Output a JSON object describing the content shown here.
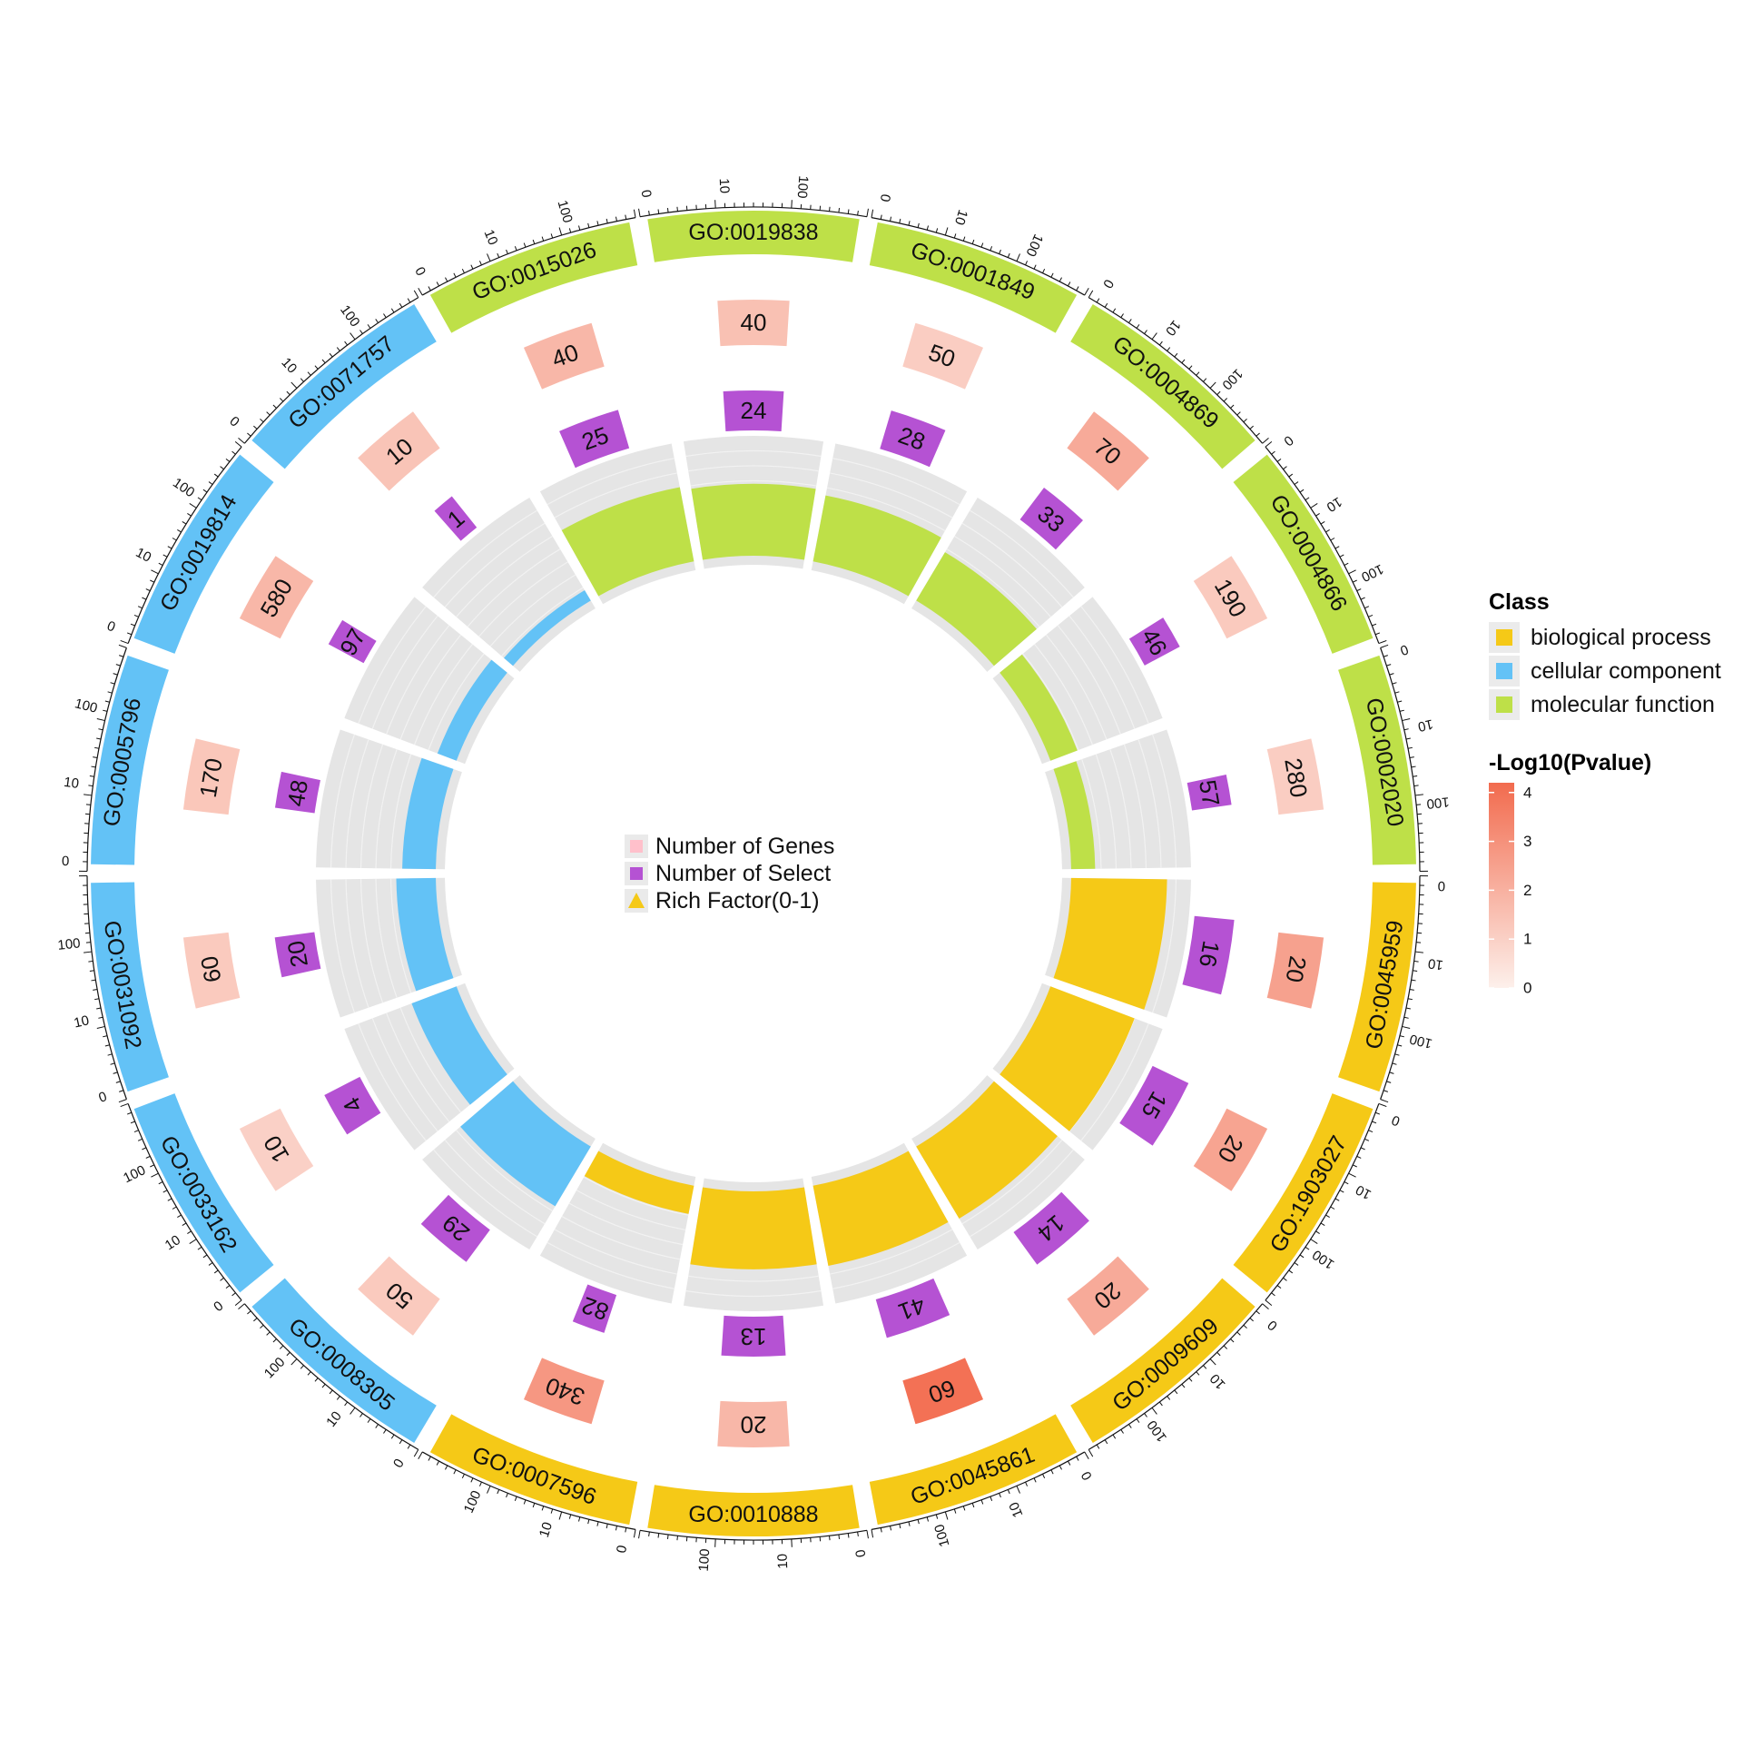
{
  "chart_data": {
    "type": "circular_go_enrichment",
    "title": "",
    "class_colors": {
      "biological process": "#F5C917",
      "cellular component": "#63C2F6",
      "molecular function": "#BEE048"
    },
    "select_color": "#B552D3",
    "track_bg_color": "#E5E5E5",
    "outer_scale_ticks": [
      "0",
      "10",
      "100"
    ],
    "terms": [
      {
        "id": "GO:0045959",
        "class": "biological process",
        "genes": 20,
        "select": 16,
        "rich_factor": 0.8,
        "neglog10p": 2.5
      },
      {
        "id": "GO:1903027",
        "class": "biological process",
        "genes": 20,
        "select": 15,
        "rich_factor": 0.75,
        "neglog10p": 2.4
      },
      {
        "id": "GO:0009609",
        "class": "biological process",
        "genes": 20,
        "select": 14,
        "rich_factor": 0.7,
        "neglog10p": 2.2
      },
      {
        "id": "GO:0045861",
        "class": "biological process",
        "genes": 60,
        "select": 41,
        "rich_factor": 0.68,
        "neglog10p": 4.0
      },
      {
        "id": "GO:0010888",
        "class": "biological process",
        "genes": 20,
        "select": 13,
        "rich_factor": 0.65,
        "neglog10p": 1.8
      },
      {
        "id": "GO:0007596",
        "class": "biological process",
        "genes": 340,
        "select": 82,
        "rich_factor": 0.24,
        "neglog10p": 2.8
      },
      {
        "id": "GO:0008305",
        "class": "cellular component",
        "genes": 50,
        "select": 29,
        "rich_factor": 0.58,
        "neglog10p": 1.2
      },
      {
        "id": "GO:0033162",
        "class": "cellular component",
        "genes": 10,
        "select": 4,
        "rich_factor": 0.4,
        "neglog10p": 1.0
      },
      {
        "id": "GO:0031092",
        "class": "cellular component",
        "genes": 60,
        "select": 20,
        "rich_factor": 0.33,
        "neglog10p": 1.2
      },
      {
        "id": "GO:0005796",
        "class": "cellular component",
        "genes": 170,
        "select": 48,
        "rich_factor": 0.28,
        "neglog10p": 1.3
      },
      {
        "id": "GO:0019814",
        "class": "cellular component",
        "genes": 580,
        "select": 97,
        "rich_factor": 0.17,
        "neglog10p": 1.8
      },
      {
        "id": "GO:0071757",
        "class": "cellular component",
        "genes": 10,
        "select": 1,
        "rich_factor": 0.1,
        "neglog10p": 1.4
      },
      {
        "id": "GO:0015026",
        "class": "molecular function",
        "genes": 40,
        "select": 25,
        "rich_factor": 0.63,
        "neglog10p": 1.8
      },
      {
        "id": "GO:0019838",
        "class": "molecular function",
        "genes": 40,
        "select": 24,
        "rich_factor": 0.6,
        "neglog10p": 1.5
      },
      {
        "id": "GO:0001849",
        "class": "molecular function",
        "genes": 50,
        "select": 28,
        "rich_factor": 0.56,
        "neglog10p": 1.1
      },
      {
        "id": "GO:0004869",
        "class": "molecular function",
        "genes": 70,
        "select": 33,
        "rich_factor": 0.47,
        "neglog10p": 2.2
      },
      {
        "id": "GO:0004866",
        "class": "molecular function",
        "genes": 190,
        "select": 46,
        "rich_factor": 0.24,
        "neglog10p": 1.2
      },
      {
        "id": "GO:0002020",
        "class": "molecular function",
        "genes": 280,
        "select": 57,
        "rich_factor": 0.2,
        "neglog10p": 1.1
      }
    ],
    "inner_legend": [
      {
        "label": "Number of Genes",
        "color": "#FFC0CB",
        "shape": "square"
      },
      {
        "label": "Number of Select",
        "color": "#B552D3",
        "shape": "square"
      },
      {
        "label": "Rich Factor(0-1)",
        "color": "#F5C917",
        "shape": "triangle"
      }
    ],
    "legend": {
      "class_title": "Class",
      "class_items": [
        "biological process",
        "cellular component",
        "molecular function"
      ],
      "pvalue_title": "-Log10(Pvalue)",
      "pvalue_ticks": [
        "0",
        "1",
        "2",
        "3",
        "4"
      ],
      "pvalue_range": [
        0,
        4.2
      ],
      "pvalue_colors": [
        "#FDF0EB",
        "#F26B4E"
      ]
    }
  }
}
